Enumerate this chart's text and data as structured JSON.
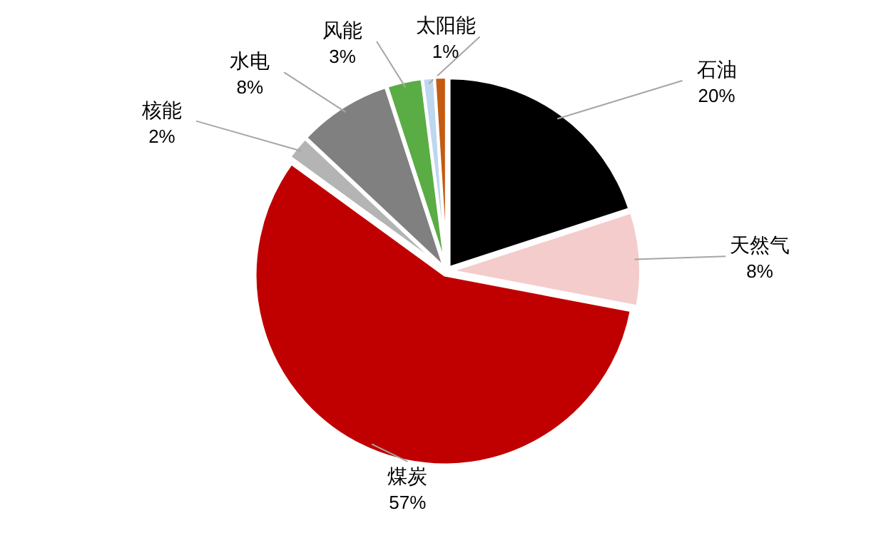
{
  "chart_data": {
    "type": "pie",
    "categories": [
      "石油",
      "天然气",
      "煤炭",
      "核能",
      "水电",
      "风能",
      "太阳能",
      null
    ],
    "values": [
      20,
      8,
      57,
      2,
      8,
      3,
      1,
      1
    ],
    "colors": [
      "#000000",
      "#f4cccc",
      "#c00000",
      "#b4b4b4",
      "#808080",
      "#5aac44",
      "#bdd7ee",
      "#c55a11"
    ],
    "value_labels": [
      "20%",
      "8%",
      "57%",
      "2%",
      "8%",
      "3%",
      "1%",
      null
    ]
  }
}
